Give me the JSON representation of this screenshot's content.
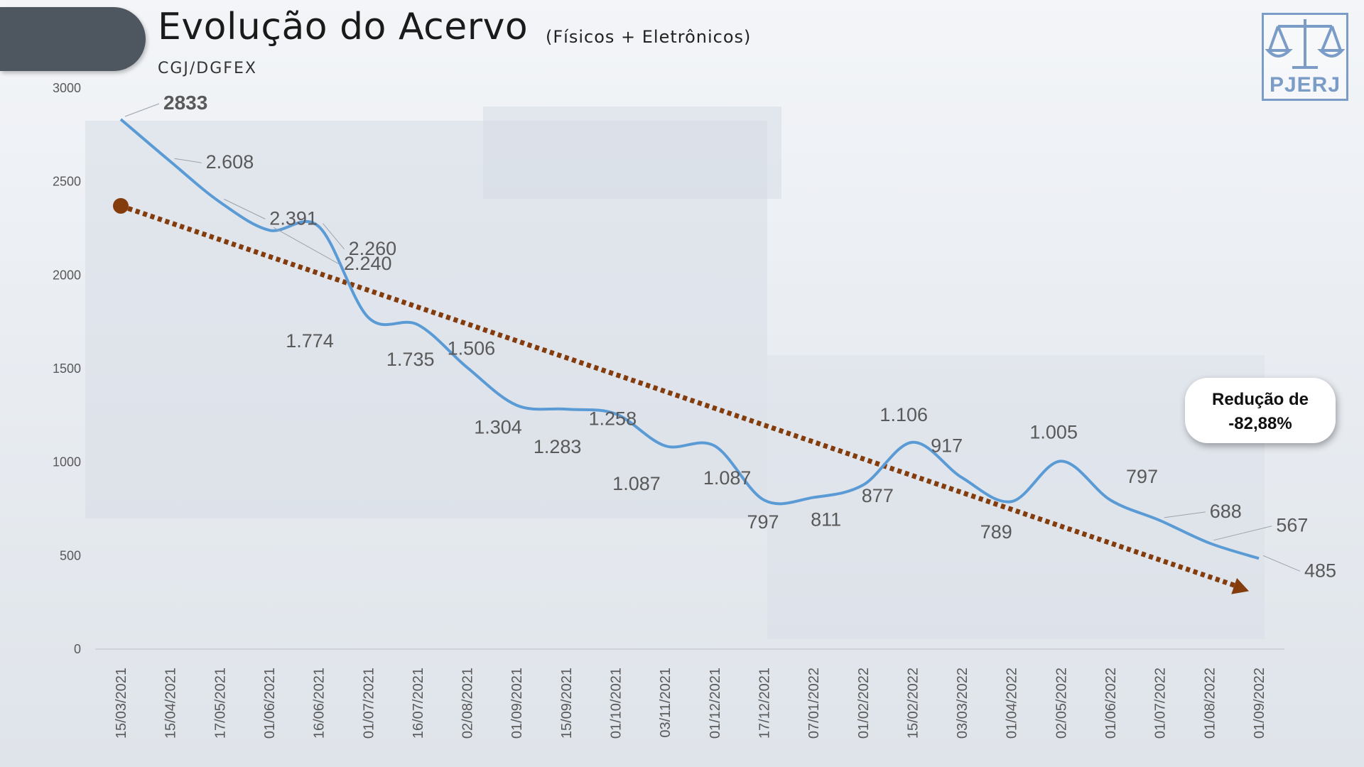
{
  "header": {
    "title": "Evolução do Acervo",
    "title_note": "(Físicos + Eletrônicos)",
    "department": "CGJ/DGFEX",
    "logo_text": "PJERJ",
    "logo_icon": "scales-of-justice-icon"
  },
  "callout": {
    "line1": "Redução de",
    "line2": "-82,88%"
  },
  "colors": {
    "series": "#5b9bd5",
    "trend": "#843c0c",
    "axis_text": "#595959",
    "label_text": "#595959"
  },
  "chart_data": {
    "type": "line",
    "title": "Evolução do Acervo",
    "xlabel": "",
    "ylabel": "",
    "ylim": [
      0,
      3000
    ],
    "yticks": [
      0,
      500,
      1000,
      1500,
      2000,
      2500,
      3000
    ],
    "grid": false,
    "categories": [
      "15/03/2021",
      "15/04/2021",
      "17/05/2021",
      "01/06/2021",
      "16/06/2021",
      "01/07/2021",
      "16/07/2021",
      "02/08/2021",
      "01/09/2021",
      "15/09/2021",
      "01/10/2021",
      "03/11/2021",
      "01/12/2021",
      "17/12/2021",
      "07/01/2022",
      "01/02/2022",
      "15/02/2022",
      "03/03/2022",
      "01/04/2022",
      "02/05/2022",
      "01/06/2022",
      "01/07/2022",
      "01/08/2022",
      "01/09/2022"
    ],
    "series": [
      {
        "values": [
          2833,
          2608,
          2391,
          2240,
          2260,
          1774,
          1735,
          1506,
          1304,
          1283,
          1258,
          1087,
          1087,
          797,
          811,
          877,
          1106,
          917,
          789,
          1005,
          797,
          688,
          567,
          485
        ],
        "labels": [
          "2833",
          "2.608",
          "2.391",
          "2.240",
          "2.260",
          "1.774",
          "1.735",
          "1.506",
          "1.304",
          "1.283",
          "1.258",
          "1.087",
          "1.087",
          "797",
          "811",
          "877",
          "1.106",
          "917",
          "789",
          "1.005",
          "797",
          "688",
          "567",
          "485"
        ]
      }
    ],
    "trend": {
      "start": 2370,
      "end": 310
    }
  }
}
